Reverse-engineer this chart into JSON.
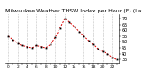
{
  "title": "Milwaukee Weather THSW Index per Hour (F) (Last 24 Hours)",
  "x_values": [
    0,
    1,
    2,
    3,
    4,
    5,
    6,
    7,
    8,
    9,
    10,
    11,
    12,
    13,
    14,
    15,
    16,
    17,
    18,
    19,
    20,
    21,
    22,
    23
  ],
  "y_values": [
    55,
    52,
    49,
    47,
    46,
    45,
    47,
    46,
    45,
    48,
    54,
    62,
    70,
    67,
    63,
    59,
    55,
    51,
    48,
    44,
    42,
    40,
    37,
    35
  ],
  "line_color": "#dd0000",
  "marker_color": "#000000",
  "bg_color": "#ffffff",
  "grid_color": "#888888",
  "ylim": [
    32,
    74
  ],
  "ytick_values": [
    35,
    40,
    45,
    50,
    55,
    60,
    65,
    70
  ],
  "ytick_labels": [
    "35",
    "40",
    "45",
    "50",
    "55",
    "60",
    "65",
    "70"
  ],
  "title_fontsize": 4.5,
  "tick_fontsize": 3.5,
  "fig_width": 1.6,
  "fig_height": 0.87,
  "dpi": 100
}
